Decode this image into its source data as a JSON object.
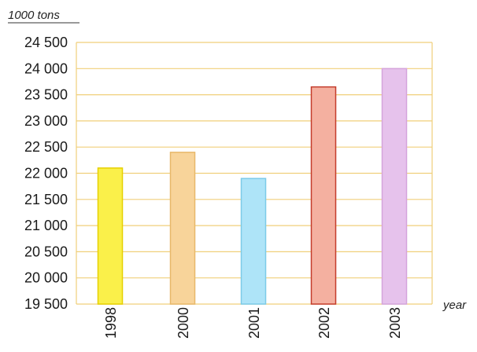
{
  "chart_data": {
    "type": "bar",
    "title": "",
    "ylabel": "1000 tons",
    "xlabel": "year",
    "categories": [
      "1998",
      "2000",
      "2001",
      "2002",
      "2003"
    ],
    "values": [
      22100,
      22400,
      21900,
      23650,
      24000
    ],
    "ylim": [
      19500,
      24500
    ],
    "yticks": [
      19500,
      20000,
      20500,
      21000,
      21500,
      22000,
      22500,
      23000,
      23500,
      24000,
      24500
    ],
    "ytick_labels": [
      "19 500",
      "20 000",
      "20 500",
      "21 000",
      "21 500",
      "22 000",
      "22 500",
      "23 000",
      "23 500",
      "24 000",
      "24 500"
    ],
    "grid": true,
    "bar_colors": [
      {
        "fill": "#faf04a",
        "stroke": "#e6d000"
      },
      {
        "fill": "#f8d49a",
        "stroke": "#e8b86a"
      },
      {
        "fill": "#aee4f8",
        "stroke": "#7ccbe8"
      },
      {
        "fill": "#f4b0a0",
        "stroke": "#c43c2c"
      },
      {
        "fill": "#e6c2ec",
        "stroke": "#d4a4dc"
      }
    ],
    "grid_color": "#f0cf7a"
  }
}
